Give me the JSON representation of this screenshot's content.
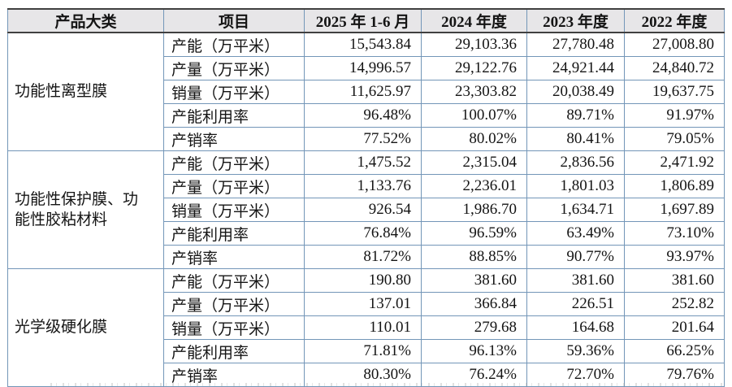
{
  "table": {
    "columns": [
      "产品大类",
      "项目",
      "2025 年 1-6 月",
      "2024 年度",
      "2023 年度",
      "2022 年度"
    ],
    "groups": [
      {
        "category": "功能性离型膜",
        "rows": [
          {
            "item": "产能（万平米）",
            "values": [
              "15,543.84",
              "29,103.36",
              "27,780.48",
              "27,008.80"
            ]
          },
          {
            "item": "产量（万平米）",
            "values": [
              "14,996.57",
              "29,122.76",
              "24,921.44",
              "24,840.72"
            ]
          },
          {
            "item": "销量（万平米）",
            "values": [
              "11,625.97",
              "23,303.82",
              "20,038.49",
              "19,637.75"
            ]
          },
          {
            "item": "产能利用率",
            "values": [
              "96.48%",
              "100.07%",
              "89.71%",
              "91.97%"
            ]
          },
          {
            "item": "产销率",
            "values": [
              "77.52%",
              "80.02%",
              "80.41%",
              "79.05%"
            ]
          }
        ]
      },
      {
        "category": "功能性保护膜、功能性胶粘材料",
        "rows": [
          {
            "item": "产能（万平米）",
            "values": [
              "1,475.52",
              "2,315.04",
              "2,836.56",
              "2,471.92"
            ]
          },
          {
            "item": "产量（万平米）",
            "values": [
              "1,133.76",
              "2,236.01",
              "1,801.03",
              "1,806.89"
            ]
          },
          {
            "item": "销量（万平米）",
            "values": [
              "926.54",
              "1,986.70",
              "1,634.71",
              "1,697.89"
            ]
          },
          {
            "item": "产能利用率",
            "values": [
              "76.84%",
              "96.59%",
              "63.49%",
              "73.10%"
            ]
          },
          {
            "item": "产销率",
            "values": [
              "81.72%",
              "88.85%",
              "90.77%",
              "93.97%"
            ]
          }
        ]
      },
      {
        "category": "光学级硬化膜",
        "rows": [
          {
            "item": "产能（万平米）",
            "values": [
              "190.80",
              "381.60",
              "381.60",
              "381.60"
            ]
          },
          {
            "item": "产量（万平米）",
            "values": [
              "137.01",
              "366.84",
              "226.51",
              "252.82"
            ]
          },
          {
            "item": "销量（万平米）",
            "values": [
              "110.01",
              "279.68",
              "164.68",
              "201.64"
            ]
          },
          {
            "item": "产能利用率",
            "values": [
              "71.81%",
              "96.13%",
              "59.36%",
              "66.25%"
            ]
          },
          {
            "item": "产销率",
            "values": [
              "80.30%",
              "76.24%",
              "72.70%",
              "79.76%"
            ]
          }
        ]
      }
    ]
  },
  "colors": {
    "header_bg": "#e7e6e8",
    "grid_line": "#7396b8",
    "header_rule": "#404040",
    "text": "#141414"
  }
}
